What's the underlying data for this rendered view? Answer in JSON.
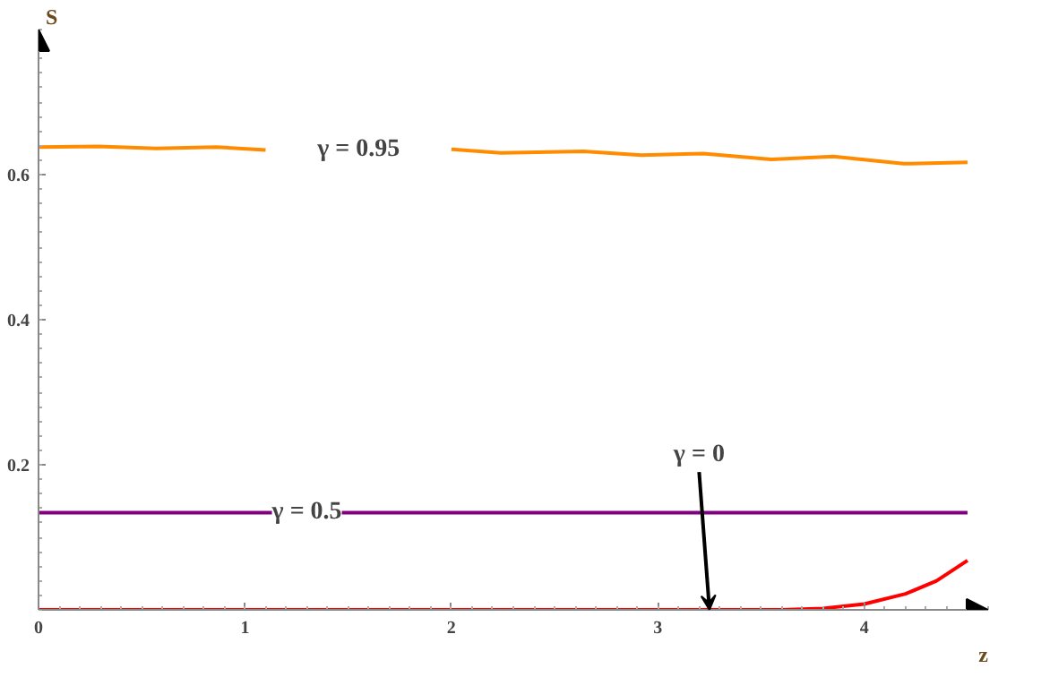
{
  "chart_data": {
    "type": "line",
    "xlabel": "z",
    "ylabel": "S",
    "xlim": [
      0,
      4.6
    ],
    "ylim": [
      0,
      0.8
    ],
    "xticks": [
      0,
      1,
      2,
      3,
      4
    ],
    "yticks": [
      0.2,
      0.4,
      0.6
    ],
    "grid": false,
    "marker": "none",
    "line_style": "solid",
    "series": [
      {
        "color": "#ff8c00",
        "x": [
          0,
          0.29,
          0.57,
          0.86,
          1.1,
          1.4,
          1.7,
          2.0,
          2.24,
          2.64,
          2.92,
          3.22,
          3.55,
          3.85,
          4.19,
          4.5
        ],
        "values": [
          0.638,
          0.639,
          0.636,
          0.638,
          0.634,
          null,
          null,
          0.635,
          0.63,
          0.632,
          0.627,
          0.629,
          0.621,
          0.625,
          0.615,
          0.617
        ]
      },
      {
        "color": "#800080",
        "x": [
          0,
          4.5
        ],
        "values": [
          0.134,
          0.134
        ]
      },
      {
        "color": "#ff0000",
        "x": [
          0,
          3.6,
          3.8,
          4.0,
          4.2,
          4.35,
          4.5
        ],
        "values": [
          0,
          0,
          0.002,
          0.008,
          0.022,
          0.04,
          0.068
        ]
      }
    ],
    "annotations": [
      "γ = 0.95",
      {
        "text": "γ = 0.5",
        "x": 1.3,
        "y": 0.134
      },
      {
        "text": "γ = 0",
        "x": 3.25,
        "y": 0
      }
    ]
  }
}
